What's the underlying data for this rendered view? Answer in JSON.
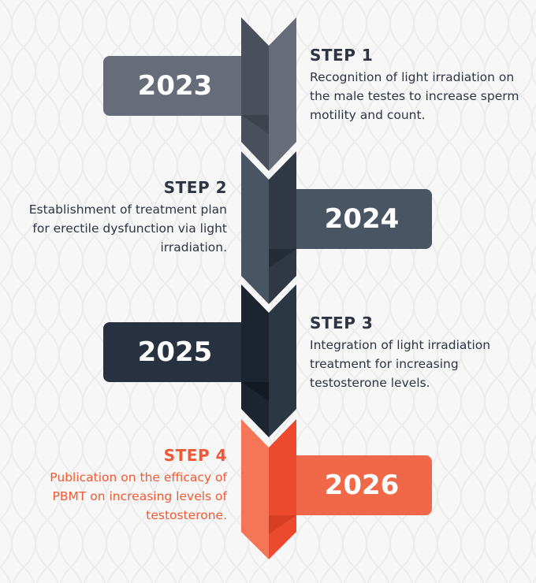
{
  "steps": [
    {
      "title": "STEP 1",
      "year": "2023",
      "description": "Recognition of light irradiation on the male testes to increase sperm motility and count.",
      "side": "right",
      "colors": {
        "tab": "#676d78",
        "chevron_dark": "#4a505b",
        "chevron_light": "#676d78",
        "text": "#2e3441"
      }
    },
    {
      "title": "STEP 2",
      "year": "2024",
      "description": "Establishment of treatment plan for erectile dysfunction via light irradiation.",
      "side": "left",
      "colors": {
        "tab": "#4a5563",
        "chevron_dark": "#4a5563",
        "chevron_light": "#2f3844",
        "text": "#2e3441"
      }
    },
    {
      "title": "STEP 3",
      "year": "2025",
      "description": "Integration of light irradiation treatment for increasing testosterone levels.",
      "side": "right",
      "colors": {
        "tab": "#27313f",
        "chevron_dark": "#1c2430",
        "chevron_light": "#2c3744",
        "text": "#2e3441"
      }
    },
    {
      "title": "STEP 4",
      "year": "2026",
      "description": "Publication on the efficacy of PBMT on increasing levels of testosterone.",
      "side": "left",
      "colors": {
        "tab": "#f16848",
        "chevron_dark": "#f57656",
        "chevron_light": "#eb4a2e",
        "text": "#ef5a35"
      }
    }
  ],
  "background_color": "#f7f7f7"
}
